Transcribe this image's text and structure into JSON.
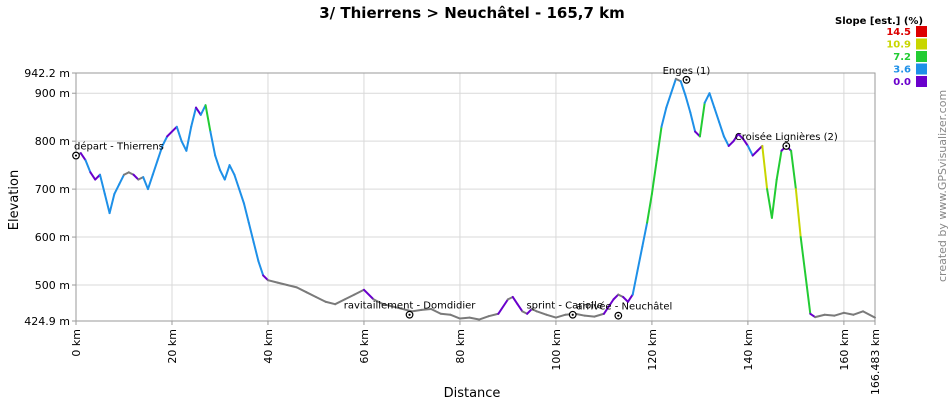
{
  "title": "3/ Thierrens > Neuchâtel - 165,7 km",
  "credit": "created by www.GPSvisualizer.com",
  "legend": {
    "title": "Slope [est.] (%)",
    "items": [
      {
        "label": "14.5",
        "color": "#dd0000"
      },
      {
        "label": "10.9",
        "color": "#c8d600"
      },
      {
        "label": "7.2",
        "color": "#22cc33"
      },
      {
        "label": "3.6",
        "color": "#1e90e8"
      },
      {
        "label": "0.0",
        "color": "#6a00cc"
      }
    ]
  },
  "chart_data": {
    "type": "line",
    "title": "3/ Thierrens > Neuchâtel - 165,7 km",
    "xlabel": "Distance",
    "ylabel": "Elevation",
    "xlim": [
      0,
      166.483
    ],
    "ylim": [
      424.9,
      942.2
    ],
    "x_ticks": [
      {
        "value": 0,
        "label": "0 km"
      },
      {
        "value": 20,
        "label": "20 km"
      },
      {
        "value": 40,
        "label": "40 km"
      },
      {
        "value": 60,
        "label": "60 km"
      },
      {
        "value": 80,
        "label": "80 km"
      },
      {
        "value": 100,
        "label": "100 km"
      },
      {
        "value": 120,
        "label": "120 km"
      },
      {
        "value": 140,
        "label": "140 km"
      },
      {
        "value": 160,
        "label": "160 km"
      },
      {
        "value": 166.483,
        "label": "166.483 km"
      }
    ],
    "y_ticks": [
      {
        "value": 942.2,
        "label": "942.2 m"
      },
      {
        "value": 900,
        "label": "900 m"
      },
      {
        "value": 800,
        "label": "800 m"
      },
      {
        "value": 700,
        "label": "700 m"
      },
      {
        "value": 600,
        "label": "600 m"
      },
      {
        "value": 500,
        "label": "500 m"
      },
      {
        "value": 424.9,
        "label": "424.9 m"
      }
    ],
    "grid": true,
    "series": [
      {
        "x": [
          0,
          1,
          2,
          3,
          4,
          5,
          6,
          7,
          8,
          9,
          10,
          11,
          12,
          13,
          14,
          15,
          16,
          17,
          18,
          19,
          20,
          21,
          22,
          23,
          24,
          25,
          26,
          27,
          28,
          29,
          30,
          31,
          32,
          33,
          34,
          35,
          36,
          37,
          38,
          39,
          40,
          42,
          44,
          46,
          48,
          50,
          52,
          54,
          56,
          58,
          60,
          62,
          64,
          66,
          68,
          70,
          72,
          74,
          76,
          78,
          80,
          82,
          84,
          86,
          88,
          90,
          91,
          92,
          93,
          94,
          95,
          96,
          98,
          100,
          102,
          104,
          106,
          108,
          110,
          112,
          113,
          114,
          115,
          116,
          117,
          118,
          119,
          120,
          121,
          122,
          123,
          124,
          125,
          126,
          127,
          128,
          129,
          130,
          131,
          132,
          133,
          134,
          135,
          136,
          137,
          138,
          139,
          140,
          141,
          142,
          143,
          144,
          145,
          146,
          147,
          148,
          149,
          150,
          151,
          152,
          153,
          154,
          156,
          158,
          160,
          162,
          164,
          166.483
        ],
        "y": [
          770,
          775,
          760,
          735,
          720,
          730,
          690,
          650,
          690,
          710,
          730,
          735,
          730,
          720,
          725,
          700,
          730,
          760,
          790,
          810,
          820,
          830,
          800,
          780,
          830,
          870,
          855,
          875,
          820,
          770,
          740,
          720,
          750,
          730,
          700,
          670,
          630,
          590,
          550,
          520,
          510,
          505,
          500,
          495,
          485,
          475,
          465,
          460,
          470,
          480,
          490,
          470,
          460,
          455,
          450,
          445,
          448,
          450,
          440,
          438,
          430,
          432,
          428,
          435,
          440,
          470,
          475,
          460,
          445,
          440,
          450,
          445,
          438,
          432,
          438,
          440,
          436,
          434,
          440,
          470,
          480,
          475,
          465,
          480,
          530,
          580,
          630,
          690,
          760,
          830,
          870,
          900,
          930,
          925,
          895,
          860,
          820,
          810,
          880,
          900,
          870,
          840,
          810,
          790,
          800,
          815,
          805,
          790,
          770,
          780,
          790,
          700,
          640,
          720,
          780,
          790,
          780,
          700,
          600,
          520,
          440,
          433,
          438,
          436,
          442,
          438,
          445,
          432
        ]
      }
    ],
    "waypoints": [
      {
        "label": "départ - Thierrens",
        "x": 0,
        "y": 770
      },
      {
        "label": "ravitaillement - Domdidier",
        "x": 69.5,
        "y": 438
      },
      {
        "label": "sprint - Cariolle",
        "x": 103.5,
        "y": 438
      },
      {
        "label": "arrivée - Neuchâtel",
        "x": 113,
        "y": 436
      },
      {
        "label": "Enges (1)",
        "x": 127.2,
        "y": 928
      },
      {
        "label": "Croisée Lignières (2)",
        "x": 148,
        "y": 790
      }
    ]
  }
}
